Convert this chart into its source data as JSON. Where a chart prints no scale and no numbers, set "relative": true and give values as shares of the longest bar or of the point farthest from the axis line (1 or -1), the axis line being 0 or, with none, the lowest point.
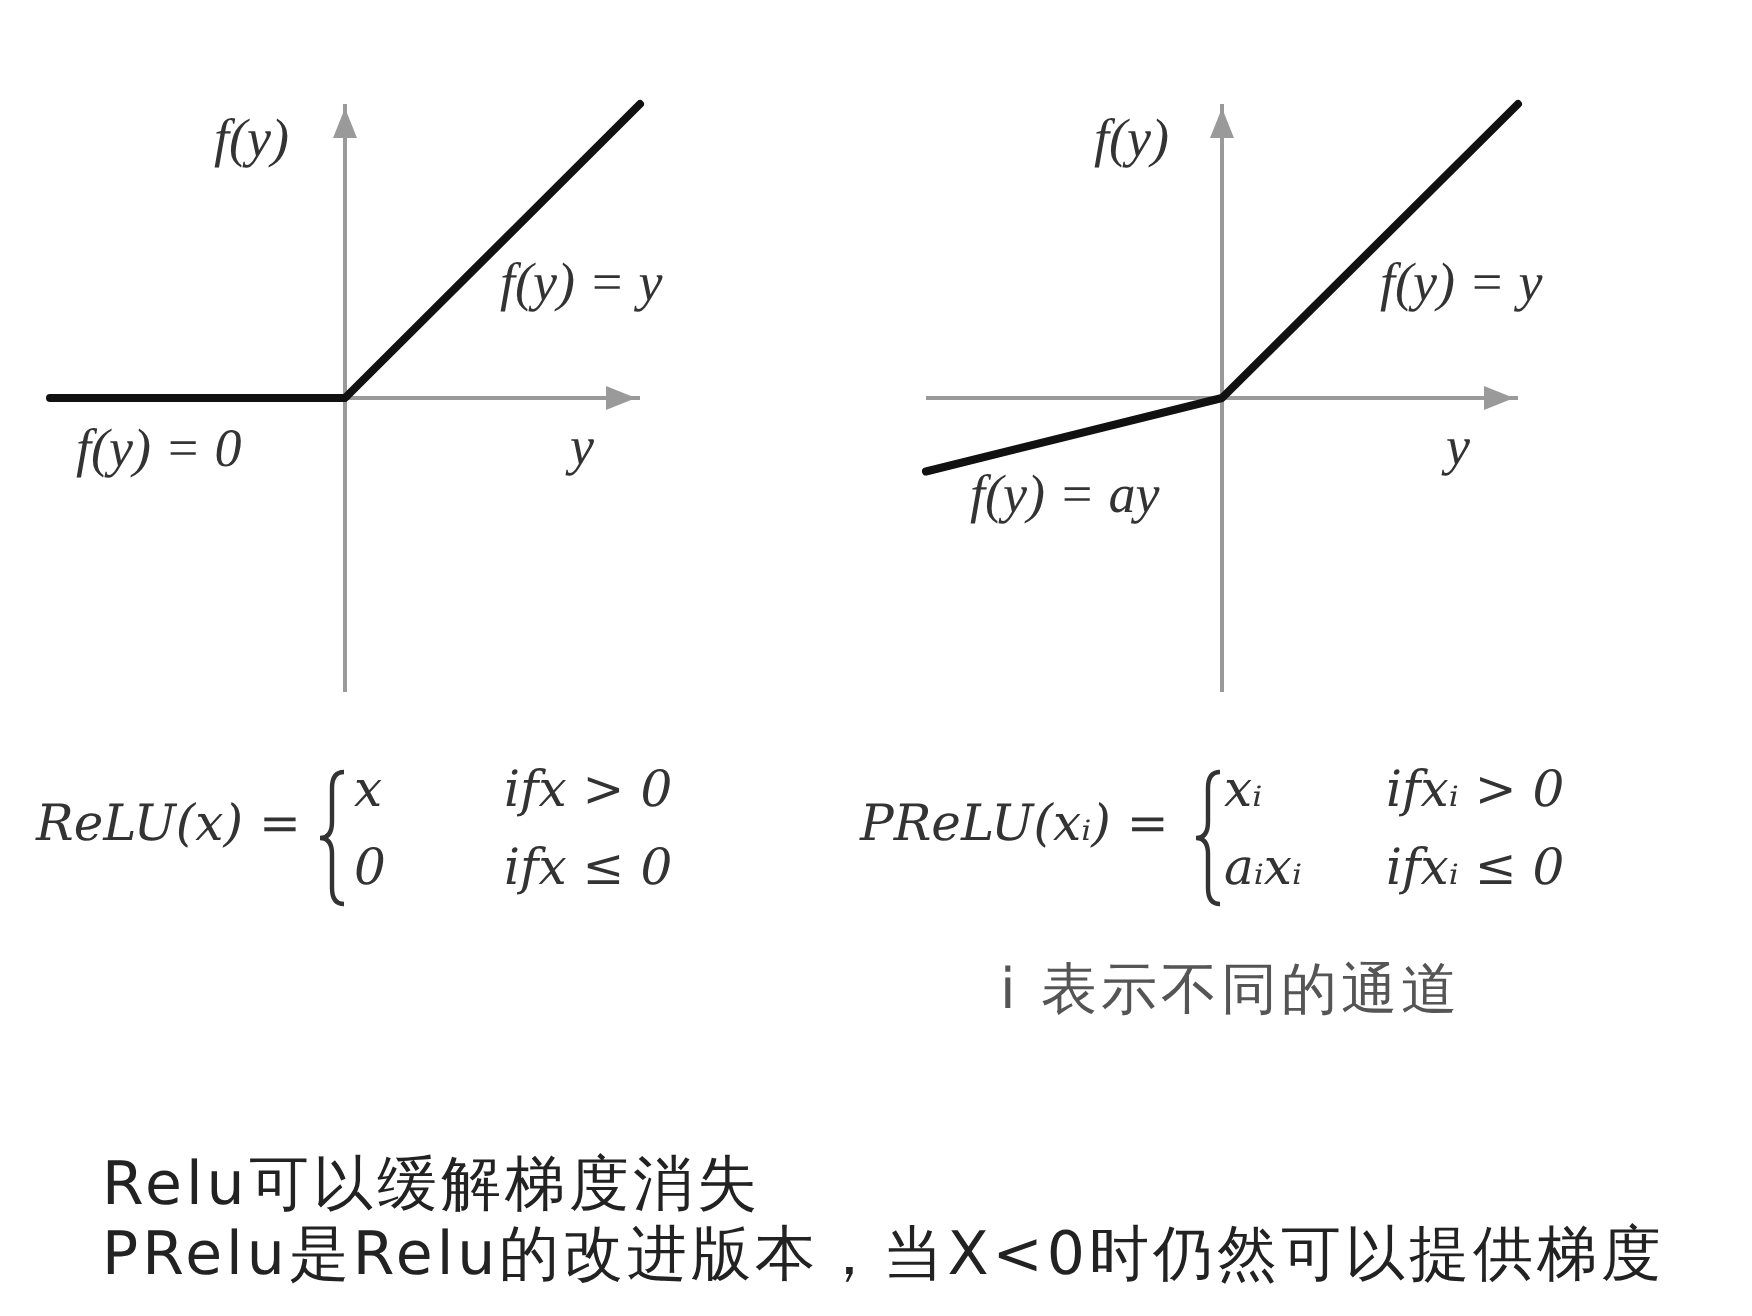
{
  "chart_data": [
    {
      "type": "line",
      "relative": true,
      "categories": [
        null,
        null,
        null
      ],
      "xlabel": "y",
      "ylabel": "f(y)",
      "series": [
        {
          "color": "#111111",
          "values": [
            0,
            0,
            1
          ]
        }
      ],
      "annotations": [
        "f(y) = y",
        "f(y) = 0",
        "ReLU(x) =",
        "x",
        "ifx > 0",
        "0",
        "ifx ≤ 0"
      ]
    },
    {
      "type": "line",
      "relative": true,
      "categories": [
        null,
        null,
        null
      ],
      "xlabel": "y",
      "ylabel": "f(y)",
      "series": [
        {
          "color": "#111111",
          "values": [
            -0.25,
            0,
            1
          ]
        }
      ],
      "annotations": [
        "f(y) = y",
        "f(y) = ay",
        "PReLU(xᵢ) =",
        "xᵢ",
        "ifxᵢ > 0",
        "aᵢxᵢ",
        "ifxᵢ ≤ 0",
        "i 表示不同的通道"
      ]
    },
    {
      "type": "other",
      "annotations": [
        "Relu可以缓解梯度消失",
        "PRelu是Relu的改进版本，当X<0时仍然可以提供梯度"
      ]
    }
  ]
}
